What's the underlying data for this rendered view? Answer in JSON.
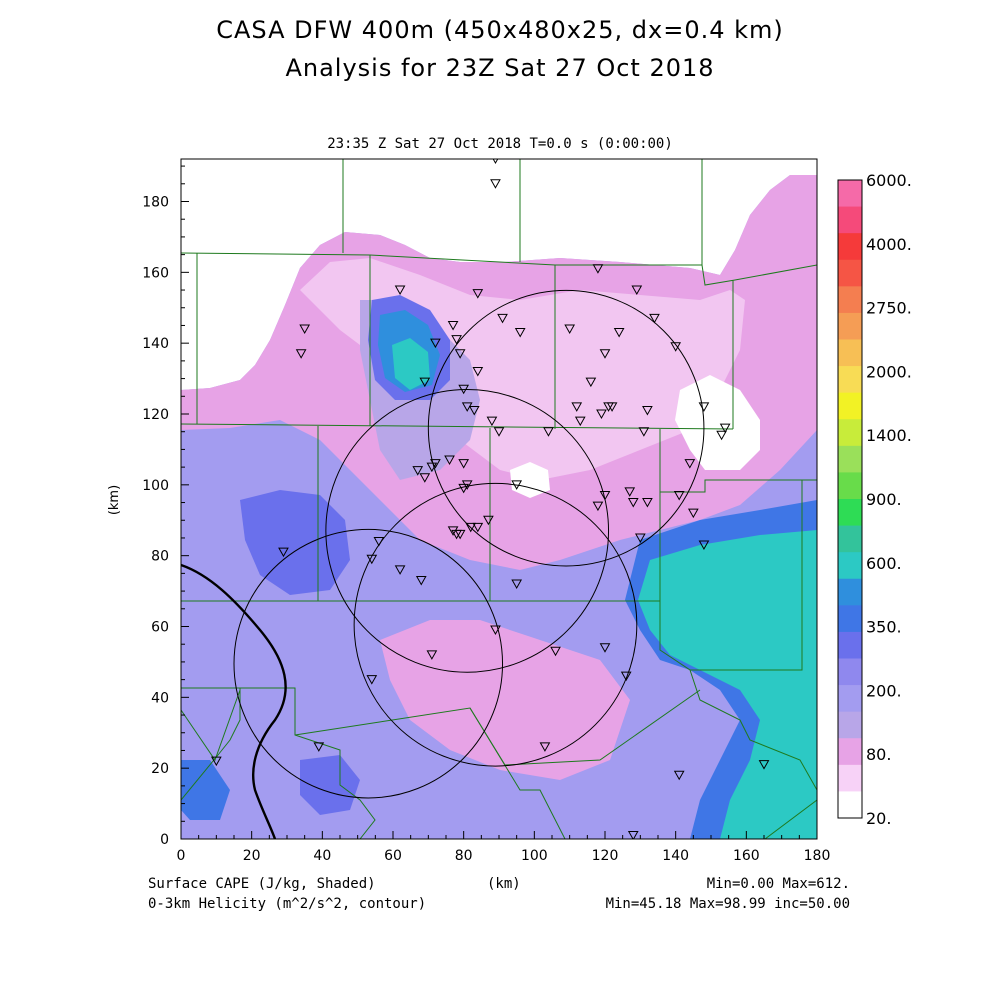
{
  "title_line1": "CASA DFW 400m (450x480x25, dx=0.4 km)",
  "title_line2": "Analysis for 23Z Sat 27 Oct 2018",
  "subtitle": "23:35 Z Sat 27 Oct 2018    T=0.0 s (0:00:00)",
  "x_axis": {
    "label": "(km)",
    "ticks": [
      0,
      20,
      40,
      60,
      80,
      100,
      120,
      140,
      160,
      180
    ],
    "range": [
      0,
      180
    ]
  },
  "y_axis": {
    "label": "(km)",
    "ticks": [
      0,
      20,
      40,
      60,
      80,
      100,
      120,
      140,
      160,
      180
    ],
    "range": [
      0,
      192
    ]
  },
  "colorbar": {
    "labels": [
      "6000.",
      "4000.",
      "2750.",
      "2000.",
      "1400.",
      "900.",
      "600.",
      "350.",
      "200.",
      "80.",
      "20."
    ],
    "colors": [
      "#ffffff",
      "#f7d2f7",
      "#e7a3e6",
      "#b8a6e8",
      "#a39cf0",
      "#8f88ee",
      "#6a70ec",
      "#3f76e6",
      "#2f8fdd",
      "#2cc9c4",
      "#33c39b",
      "#2edc55",
      "#68dc4a",
      "#9ae05a",
      "#c8ec3a",
      "#f2f225",
      "#f8dc55",
      "#f7bf55",
      "#f59d55",
      "#f47e50",
      "#f55545",
      "#f53a3a",
      "#f54a7a",
      "#f56aa8"
    ]
  },
  "footer": {
    "left1": "Surface CAPE (J/kg, Shaded)",
    "left2": "0-3km Helicity (m^2/s^2, contour)",
    "center": "(km)",
    "right1": "Min=0.00 Max=612.",
    "right2": "Min=45.18 Max=98.99 inc=50.00"
  },
  "radar_circles": [
    {
      "x": 53,
      "y": 49.5,
      "r": 38
    },
    {
      "x": 81,
      "y": 87,
      "r": 40
    },
    {
      "x": 109,
      "y": 116,
      "r": 39
    },
    {
      "x": 89,
      "y": 60.5,
      "r": 40
    }
  ],
  "stations": [
    [
      89,
      192
    ],
    [
      89,
      185
    ],
    [
      118,
      161
    ],
    [
      62,
      155
    ],
    [
      84,
      154
    ],
    [
      129,
      155
    ],
    [
      91,
      147
    ],
    [
      35,
      144
    ],
    [
      77,
      145
    ],
    [
      96,
      143
    ],
    [
      110,
      144
    ],
    [
      124,
      143
    ],
    [
      134,
      147
    ],
    [
      34,
      137
    ],
    [
      72,
      140
    ],
    [
      78,
      141
    ],
    [
      79,
      137
    ],
    [
      84,
      132
    ],
    [
      120,
      137
    ],
    [
      140,
      139
    ],
    [
      69,
      129
    ],
    [
      80,
      127
    ],
    [
      116,
      129
    ],
    [
      81,
      122
    ],
    [
      83,
      121
    ],
    [
      88,
      118
    ],
    [
      112,
      122
    ],
    [
      113,
      118
    ],
    [
      119,
      120
    ],
    [
      121,
      122
    ],
    [
      122,
      122
    ],
    [
      132,
      121
    ],
    [
      148,
      122
    ],
    [
      154,
      116
    ],
    [
      153,
      114
    ],
    [
      90,
      115
    ],
    [
      104,
      115
    ],
    [
      131,
      115
    ],
    [
      67,
      104
    ],
    [
      69,
      102
    ],
    [
      71,
      105
    ],
    [
      72,
      106
    ],
    [
      76,
      107
    ],
    [
      80,
      106
    ],
    [
      80,
      99
    ],
    [
      81,
      100
    ],
    [
      95,
      100
    ],
    [
      120,
      97
    ],
    [
      127,
      98
    ],
    [
      118,
      94
    ],
    [
      128,
      95
    ],
    [
      132,
      95
    ],
    [
      141,
      97
    ],
    [
      145,
      92
    ],
    [
      144,
      106
    ],
    [
      87,
      90
    ],
    [
      84,
      88
    ],
    [
      82,
      88
    ],
    [
      77,
      87
    ],
    [
      79,
      86
    ],
    [
      78,
      86
    ],
    [
      56,
      84
    ],
    [
      54,
      79
    ],
    [
      130,
      85
    ],
    [
      148,
      83
    ],
    [
      29,
      81
    ],
    [
      62,
      76
    ],
    [
      68,
      73
    ],
    [
      95,
      72
    ],
    [
      89,
      59
    ],
    [
      71,
      52
    ],
    [
      106,
      53
    ],
    [
      120,
      54
    ],
    [
      54,
      45
    ],
    [
      126,
      46
    ],
    [
      39,
      26
    ],
    [
      103,
      26
    ],
    [
      10,
      22
    ],
    [
      165,
      21
    ],
    [
      141,
      18
    ],
    [
      128,
      1
    ]
  ]
}
